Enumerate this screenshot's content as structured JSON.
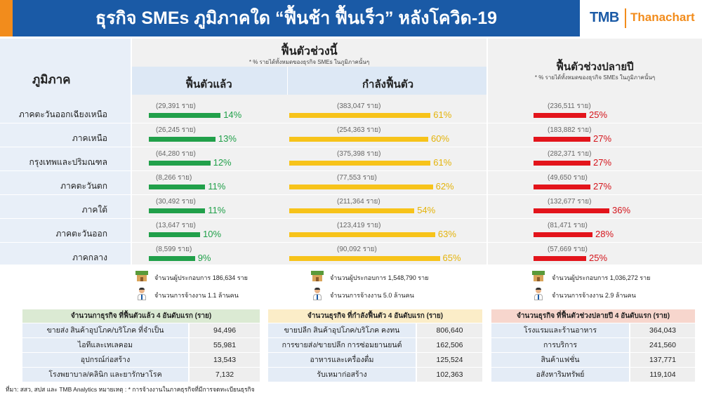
{
  "header": {
    "title": "ธุรกิจ SMEs ภูมิภาคใด “ฟื้นช้า ฟื้นเร็ว” หลังโควิด-19",
    "logo_tmb": "TMB",
    "logo_thanachart": "Thanachart"
  },
  "columns": {
    "region": "ภูมิภาค",
    "recover_now": "ฟื้นตัวช่วงนี้",
    "recover_now_note": "* % รายได้ทั้งหมดของธุรกิจ SMEs ในภูมิภาคนั้นๆ",
    "recovered": "ฟื้นตัวแล้ว",
    "recovering": "กำลังฟื้นตัว",
    "late_year": "ฟื้นตัวช่วงปลายปี",
    "late_year_note": "* % รายได้ทั้งหมดของธุรกิจ SMEs ในภูมิภาคนั้นๆ"
  },
  "chart_data": {
    "type": "bar",
    "categories": [
      "ภาคตะวันออกเฉียงเหนือ",
      "ภาคเหนือ",
      "กรุงเทพและปริมณฑล",
      "ภาคตะวันตก",
      "ภาคใต้",
      "ภาคตะวันออก",
      "ภาคกลาง"
    ],
    "series": [
      {
        "name": "ฟื้นตัวแล้ว",
        "color": "#21a04a",
        "values": [
          14,
          13,
          12,
          11,
          11,
          10,
          9
        ],
        "labels": [
          "14%",
          "13%",
          "12%",
          "11%",
          "11%",
          "10%",
          "9%"
        ],
        "counts": [
          "(29,391 ราย)",
          "(26,245 ราย)",
          "(64,280 ราย)",
          "(8,266 ราย)",
          "(30,492 ราย)",
          "(13,647 ราย)",
          "(8,599 ราย)"
        ]
      },
      {
        "name": "กำลังฟื้นตัว",
        "color": "#f7c31a",
        "values": [
          61,
          60,
          61,
          62,
          54,
          63,
          65
        ],
        "labels": [
          "61%",
          "60%",
          "61%",
          "62%",
          "54%",
          "63%",
          "65%"
        ],
        "counts": [
          "(383,047 ราย)",
          "(254,363 ราย)",
          "(375,398 ราย)",
          "(77,553 ราย)",
          "(211,364 ราย)",
          "(123,419 ราย)",
          "(90,092 ราย)"
        ]
      },
      {
        "name": "ฟื้นตัวช่วงปลายปี",
        "color": "#e3141b",
        "values": [
          25,
          27,
          27,
          27,
          36,
          28,
          25
        ],
        "labels": [
          "25%",
          "27%",
          "27%",
          "27%",
          "36%",
          "28%",
          "25%"
        ],
        "counts": [
          "(236,511 ราย)",
          "(183,882 ราย)",
          "(282,371 ราย)",
          "(49,650 ราย)",
          "(132,677 ราย)",
          "(81,471 ราย)",
          "(57,669 ราย)"
        ]
      }
    ]
  },
  "summary": {
    "recovered": {
      "operators": "จำนวนผู้ประกอบการ 186,634 ราย",
      "employment": "จำนวนการจ้างงาน 1.1 ล้านคน"
    },
    "recovering": {
      "operators": "จำนวนผู้ประกอบการ 1,548,790 ราย",
      "employment": "จำนวนการจ้างงาน 5.0 ล้านคน"
    },
    "late_year": {
      "operators": "จำนวนผู้ประกอบการ 1,036,272 ราย",
      "employment": "จำนวนการจ้างงาน 2.9 ล้านคน"
    }
  },
  "tables": {
    "recovered": {
      "title": "จำนวนกาธุรกิจ ที่ฟื้นตัวแล้ว 4 อันดับแรก (ราย)",
      "header_color": "#dbead3",
      "rows": [
        {
          "name": "ขายส่ง สินค้าอุปโภค/บริโภค ที่จำเป็น",
          "value": "94,496"
        },
        {
          "name": "ไอทีและเทเลคอม",
          "value": "55,981"
        },
        {
          "name": "อุปกรณ์ก่อสร้าง",
          "value": "13,543"
        },
        {
          "name": "โรงพยาบาล/คลินิก และยารักษาโรค",
          "value": "7,132"
        }
      ]
    },
    "recovering": {
      "title": "จำนวนธุรกิจ ที่กำลังฟื้นตัว 4 อันดับแรก (ราย)",
      "header_color": "#fbedc8",
      "rows": [
        {
          "name": "ขายปลีก สินค้าอุปโภค/บริโภค คงทน",
          "value": "806,640"
        },
        {
          "name": "การขายส่ง/ขายปลีก การซ่อมยานยนต์",
          "value": "162,506"
        },
        {
          "name": "อาหารและเครื่องดื่ม",
          "value": "125,524"
        },
        {
          "name": "รับเหมาก่อสร้าง",
          "value": "102,363"
        }
      ]
    },
    "late_year": {
      "title": "จำนวนธุรกิจ ที่ฟื้นตัวช่วงปลายปี 4 อันดับแรก (ราย)",
      "header_color": "#f7d6cd",
      "rows": [
        {
          "name": "โรงแรมและร้านอาหาร",
          "value": "364,043"
        },
        {
          "name": "การบริการ",
          "value": "241,560"
        },
        {
          "name": "สินค้าแฟชั่น",
          "value": "137,771"
        },
        {
          "name": "อสังหาริมทรัพย์",
          "value": "119,104"
        }
      ]
    }
  },
  "footer": "ที่มา: สสว, สปส และ TMB Analytics  หมายเหตุ : * การจ้างงานในภาคธุรกิจที่มีการจดทะเบียนธุรกิจ"
}
